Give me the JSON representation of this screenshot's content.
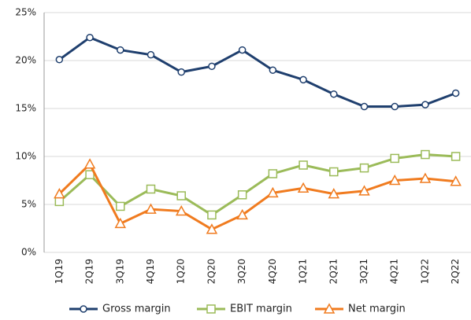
{
  "chart_data": {
    "type": "line",
    "categories": [
      "1Q19",
      "2Q19",
      "3Q19",
      "4Q19",
      "1Q20",
      "2Q20",
      "3Q20",
      "4Q20",
      "1Q21",
      "2Q21",
      "3Q21",
      "4Q21",
      "1Q22",
      "2Q22"
    ],
    "series": [
      {
        "name": "Gross margin",
        "color": "#1f3f6e",
        "marker": "circle",
        "values": [
          20.1,
          22.4,
          21.1,
          20.6,
          18.8,
          19.4,
          21.1,
          19.0,
          18.0,
          16.5,
          15.2,
          15.2,
          15.4,
          16.6
        ]
      },
      {
        "name": "EBIT margin",
        "color": "#9bbb59",
        "marker": "square",
        "values": [
          5.3,
          8.1,
          4.8,
          6.6,
          5.9,
          3.9,
          6.0,
          8.2,
          9.1,
          8.4,
          8.8,
          9.8,
          10.2,
          10.0
        ]
      },
      {
        "name": "Net margin",
        "color": "#f07b1f",
        "marker": "triangle",
        "values": [
          6.1,
          9.2,
          3.0,
          4.5,
          4.3,
          2.4,
          3.9,
          6.2,
          6.7,
          6.1,
          6.4,
          7.5,
          7.7,
          7.4
        ]
      }
    ],
    "ylim": [
      0,
      25
    ],
    "yticks": [
      {
        "value": 0,
        "label": "0%"
      },
      {
        "value": 5,
        "label": "5%"
      },
      {
        "value": 10,
        "label": "10%"
      },
      {
        "value": 15,
        "label": "15%"
      },
      {
        "value": 20,
        "label": "20%"
      },
      {
        "value": 25,
        "label": "25%"
      }
    ],
    "grid": true,
    "legend": "bottom"
  }
}
